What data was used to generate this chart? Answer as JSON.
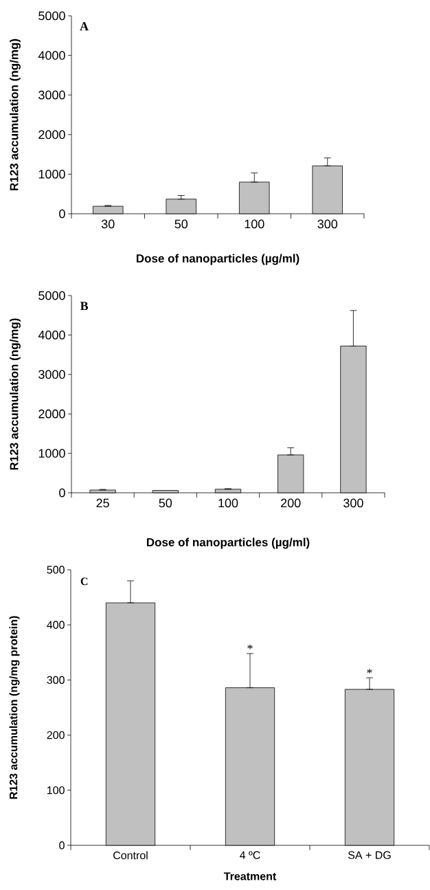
{
  "chart_data": [
    {
      "type": "bar",
      "xlabel": "Dose of nanoparticles (µg/ml)",
      "ylabel": "R123 accumulation (ng/mg)",
      "categories": [
        "30",
        "50",
        "100",
        "300"
      ],
      "values": [
        190,
        370,
        800,
        1210
      ],
      "errors": [
        [
          190,
          210
        ],
        [
          370,
          460
        ],
        [
          800,
          1030
        ],
        [
          1210,
          1410
        ]
      ],
      "color": "#c0c0c0",
      "ylim": [
        0,
        5000
      ],
      "yticks": [
        0,
        1000,
        2000,
        3000,
        4000,
        5000
      ],
      "annotations": [
        "A"
      ]
    },
    {
      "type": "bar",
      "xlabel": "Dose of nanoparticles (µg/ml)",
      "ylabel": "R123 accumulation (ng/mg)",
      "categories": [
        "25",
        "50",
        "100",
        "200",
        "300"
      ],
      "values": [
        70,
        60,
        90,
        960,
        3720
      ],
      "errors": [
        [
          70,
          85
        ],
        null,
        [
          90,
          105
        ],
        [
          960,
          1140
        ],
        [
          3720,
          4620
        ]
      ],
      "color": "#c0c0c0",
      "ylim": [
        0,
        5000
      ],
      "yticks": [
        0,
        1000,
        2000,
        3000,
        4000,
        5000
      ],
      "annotations": [
        "B"
      ]
    },
    {
      "type": "bar",
      "xlabel": "Treatment",
      "ylabel": "R123 accumulation (ng/mg protein)",
      "categories": [
        "Control",
        "4 ºC",
        "SA + DG"
      ],
      "values": [
        440,
        286,
        283
      ],
      "errors": [
        [
          440,
          480
        ],
        [
          286,
          348
        ],
        [
          283,
          304
        ]
      ],
      "color": "#c0c0c0",
      "ylim": [
        0,
        500
      ],
      "yticks": [
        0,
        100,
        200,
        300,
        400,
        500
      ],
      "annotations": [
        "C",
        {
          "text": "*",
          "x": "4 ºC",
          "y": 348
        },
        {
          "text": "*",
          "x": "SA + DG",
          "y": 304
        }
      ]
    }
  ]
}
